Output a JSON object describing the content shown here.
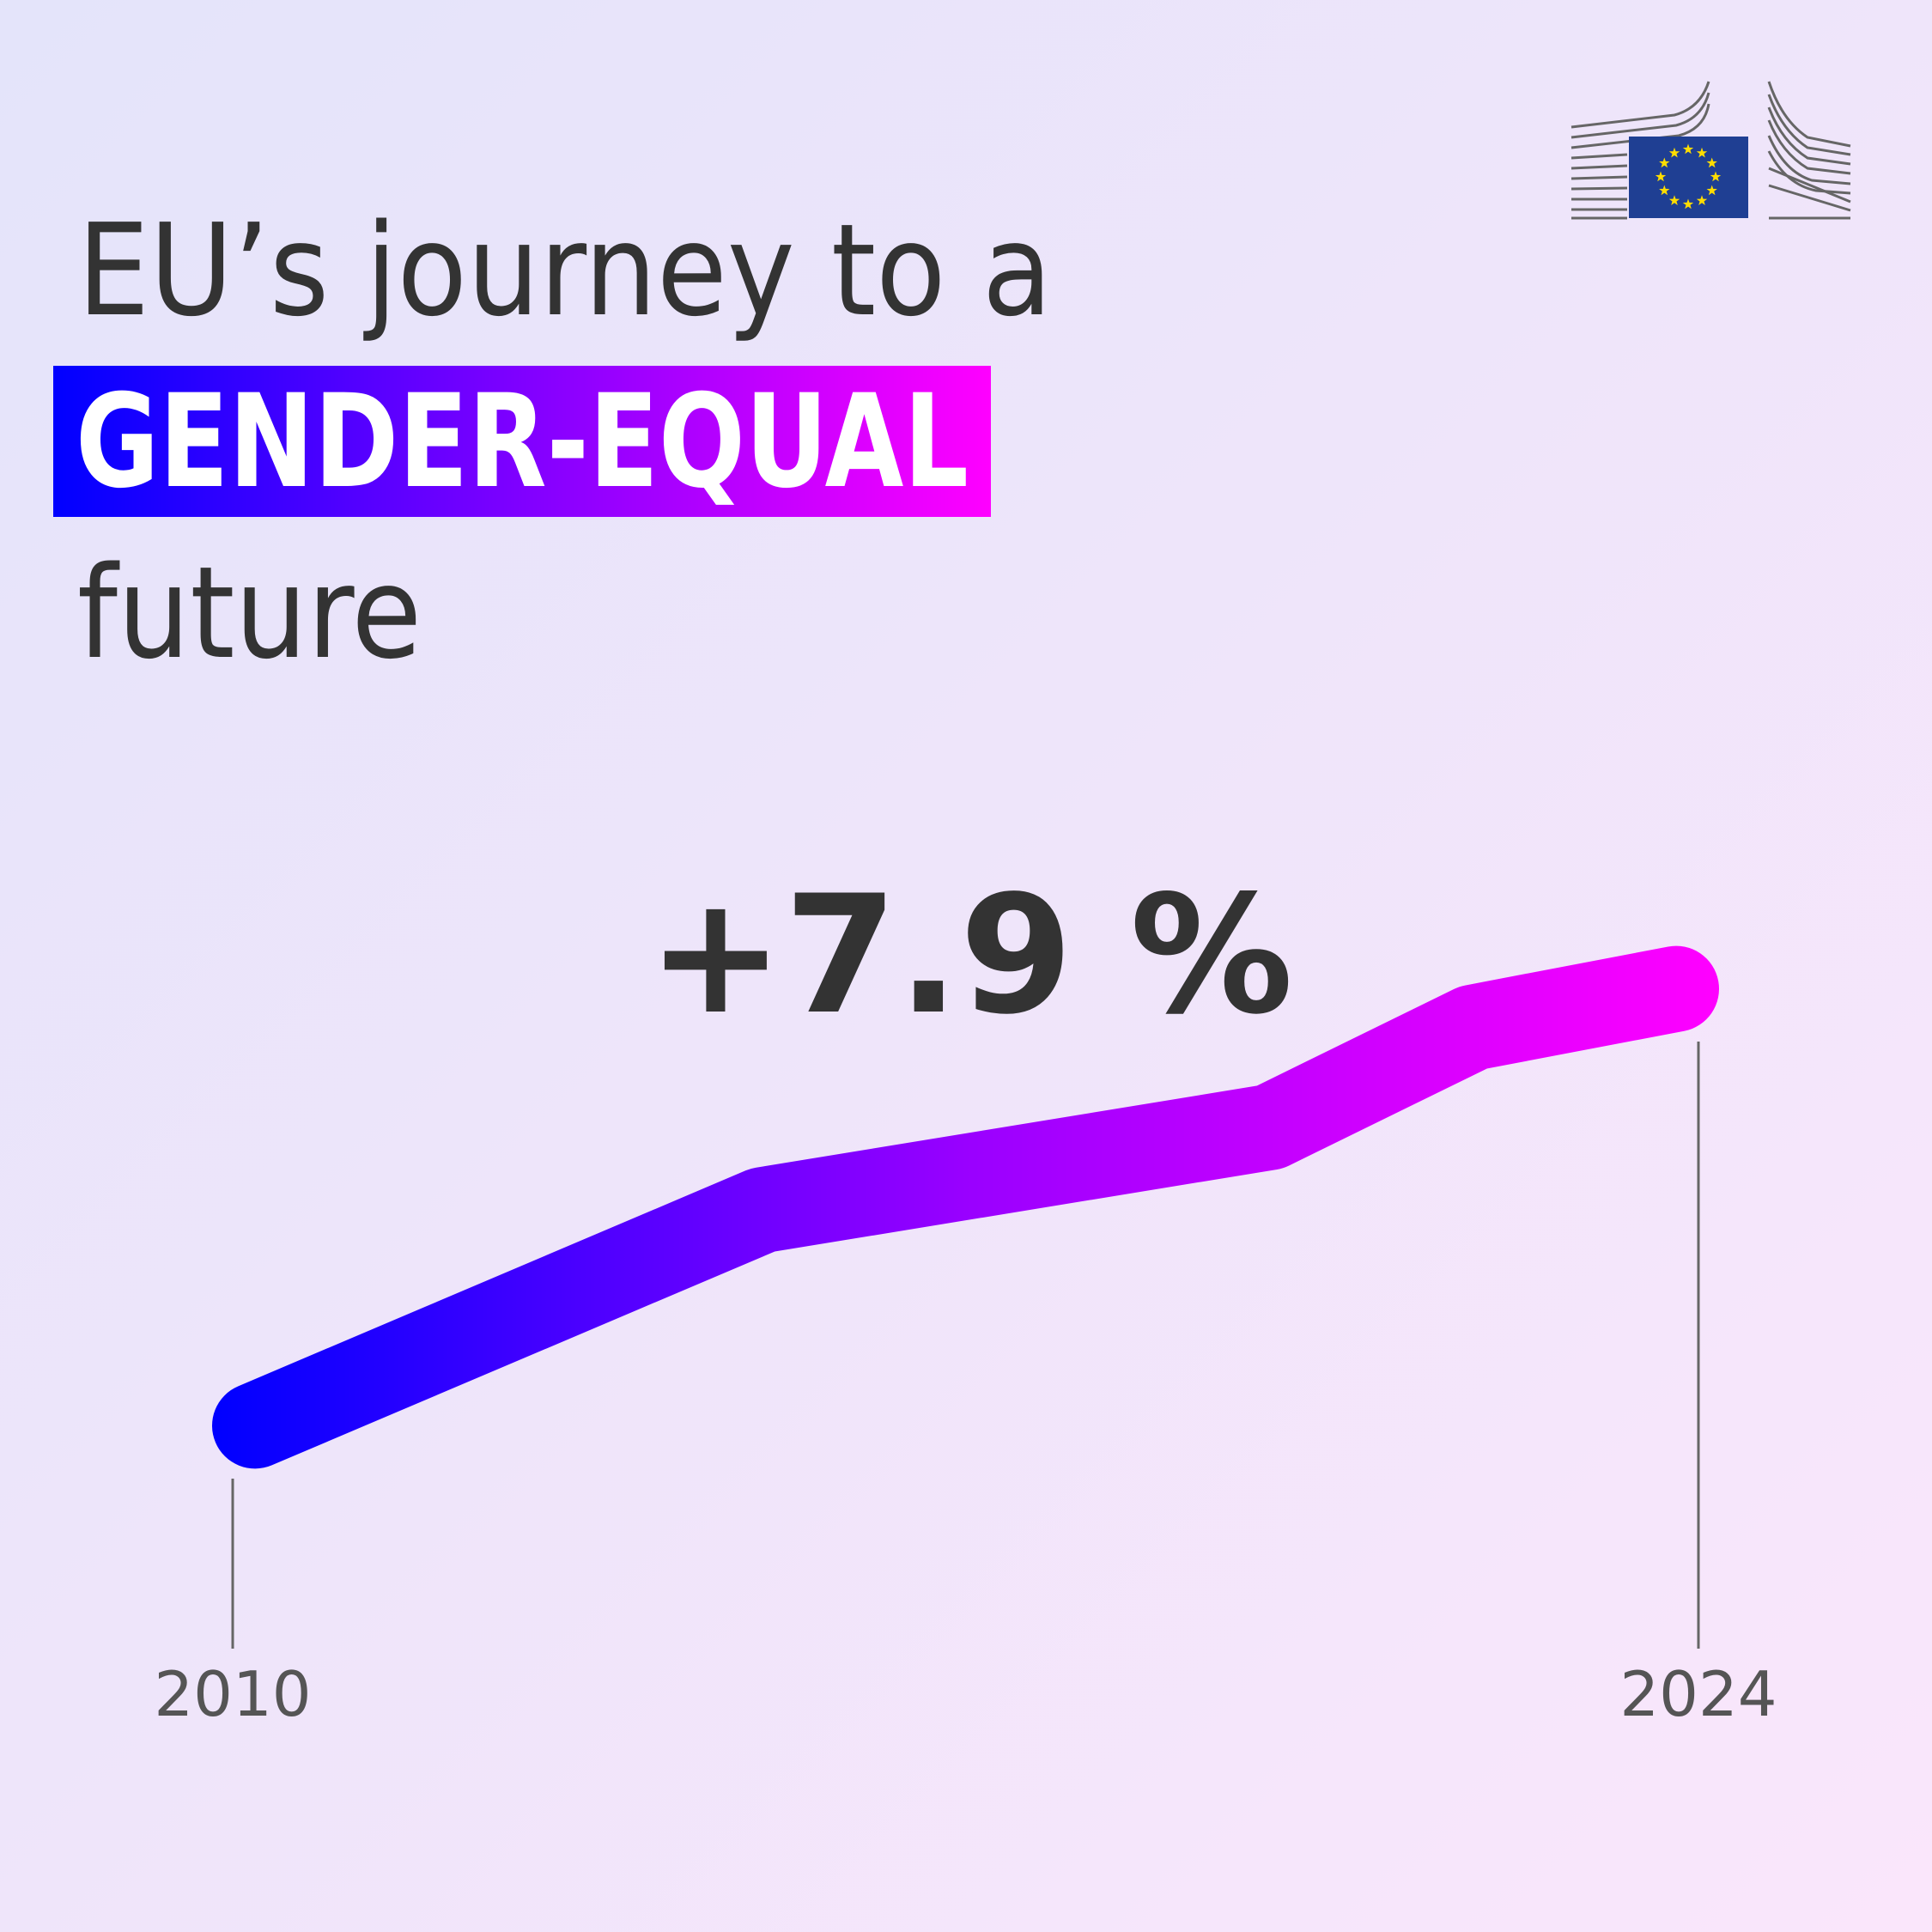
{
  "chart_data": {
    "type": "line",
    "title_lines": [
      "EU’s journey to a",
      "GENDER-EQUAL",
      "future"
    ],
    "annotation": "+7.9 %",
    "x": [
      2010,
      2015,
      2020,
      2022,
      2024
    ],
    "values": [
      63.1,
      67.0,
      68.5,
      70.3,
      71.0
    ],
    "xlim": [
      2010,
      2024
    ],
    "xticks": [
      2010,
      2024
    ],
    "ylim": [
      60,
      75
    ],
    "line_colors": [
      "#0000ff",
      "#9900ff",
      "#ff00ff"
    ],
    "highlight_colors": [
      "#0000ff",
      "#ff00ff"
    ]
  }
}
